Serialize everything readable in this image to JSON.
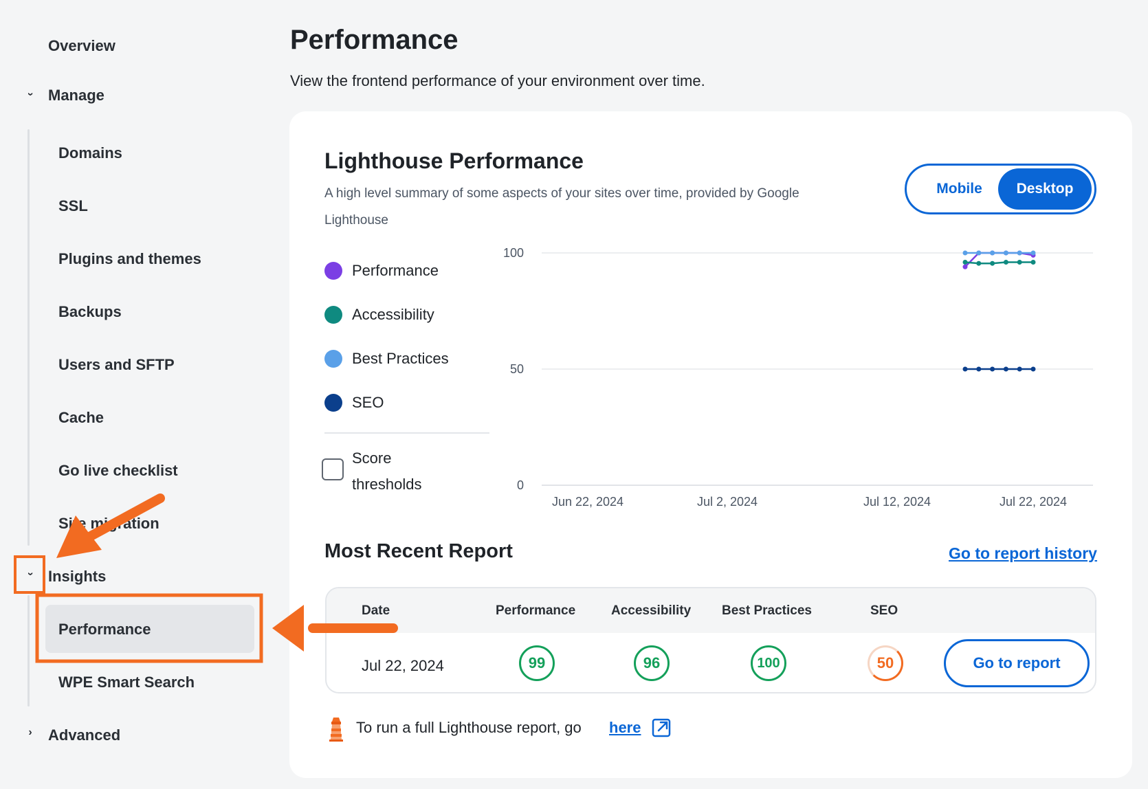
{
  "sidebar": {
    "overview": "Overview",
    "manage": "Manage",
    "manage_items": [
      "Domains",
      "SSL",
      "Plugins and themes",
      "Backups",
      "Users and SFTP",
      "Cache",
      "Go live checklist",
      "Site migration"
    ],
    "insights": "Insights",
    "insights_items": [
      "Performance",
      "WPE Smart Search"
    ],
    "advanced": "Advanced",
    "chevron_down": "›",
    "chevron_right": "›"
  },
  "page": {
    "title": "Performance",
    "subtitle": "View the frontend performance of your environment over time."
  },
  "lighthouse": {
    "title": "Lighthouse Performance",
    "subtitle": "A high level summary of some aspects of your sites over time, provided by Google Lighthouse",
    "toggle": {
      "mobile": "Mobile",
      "desktop": "Desktop",
      "selected": "Desktop"
    },
    "legend": [
      {
        "label": "Performance",
        "color": "#7b3fe4"
      },
      {
        "label": "Accessibility",
        "color": "#0f8a80"
      },
      {
        "label": "Best Practices",
        "color": "#5aa0e8"
      },
      {
        "label": "SEO",
        "color": "#0b3f8c"
      }
    ],
    "score_thresholds": "Score thresholds",
    "score_thresholds_checked": false
  },
  "chart_data": {
    "type": "line",
    "x_ticks": [
      "Jun 22, 2024",
      "Jul 2, 2024",
      "Jul 12, 2024",
      "Jul 22, 2024"
    ],
    "y_ticks": [
      "0",
      "50",
      "100"
    ],
    "ylim": [
      0,
      100
    ],
    "grid": true,
    "x": [
      "Jul 17, 2024",
      "Jul 18, 2024",
      "Jul 19, 2024",
      "Jul 20, 2024",
      "Jul 21, 2024",
      "Jul 22, 2024"
    ],
    "series": [
      {
        "name": "Performance",
        "color": "#7b3fe4",
        "values": [
          94,
          100,
          100,
          100,
          100,
          99
        ]
      },
      {
        "name": "Accessibility",
        "color": "#0f8a80",
        "values": [
          96,
          95.5,
          95.5,
          96,
          96,
          96
        ]
      },
      {
        "name": "Best Practices",
        "color": "#5aa0e8",
        "values": [
          100,
          100,
          100,
          100,
          100,
          100
        ]
      },
      {
        "name": "SEO",
        "color": "#0b3f8c",
        "values": [
          50,
          50,
          50,
          50,
          50,
          50
        ]
      }
    ]
  },
  "report": {
    "title": "Most Recent Report",
    "history_link": "Go to report history",
    "headers": [
      "Date",
      "Performance",
      "Accessibility",
      "Best Practices",
      "SEO"
    ],
    "row": {
      "date": "Jul 22, 2024",
      "performance": "99",
      "accessibility": "96",
      "best_practices": "100",
      "seo": "50"
    },
    "button": "Go to report"
  },
  "footer": {
    "text": "To run a full Lighthouse report, go",
    "link": "here"
  },
  "colors": {
    "accent": "#0a66d6",
    "annotation": "#f26b21",
    "good": "#14a05a",
    "average": "#f26b21"
  }
}
